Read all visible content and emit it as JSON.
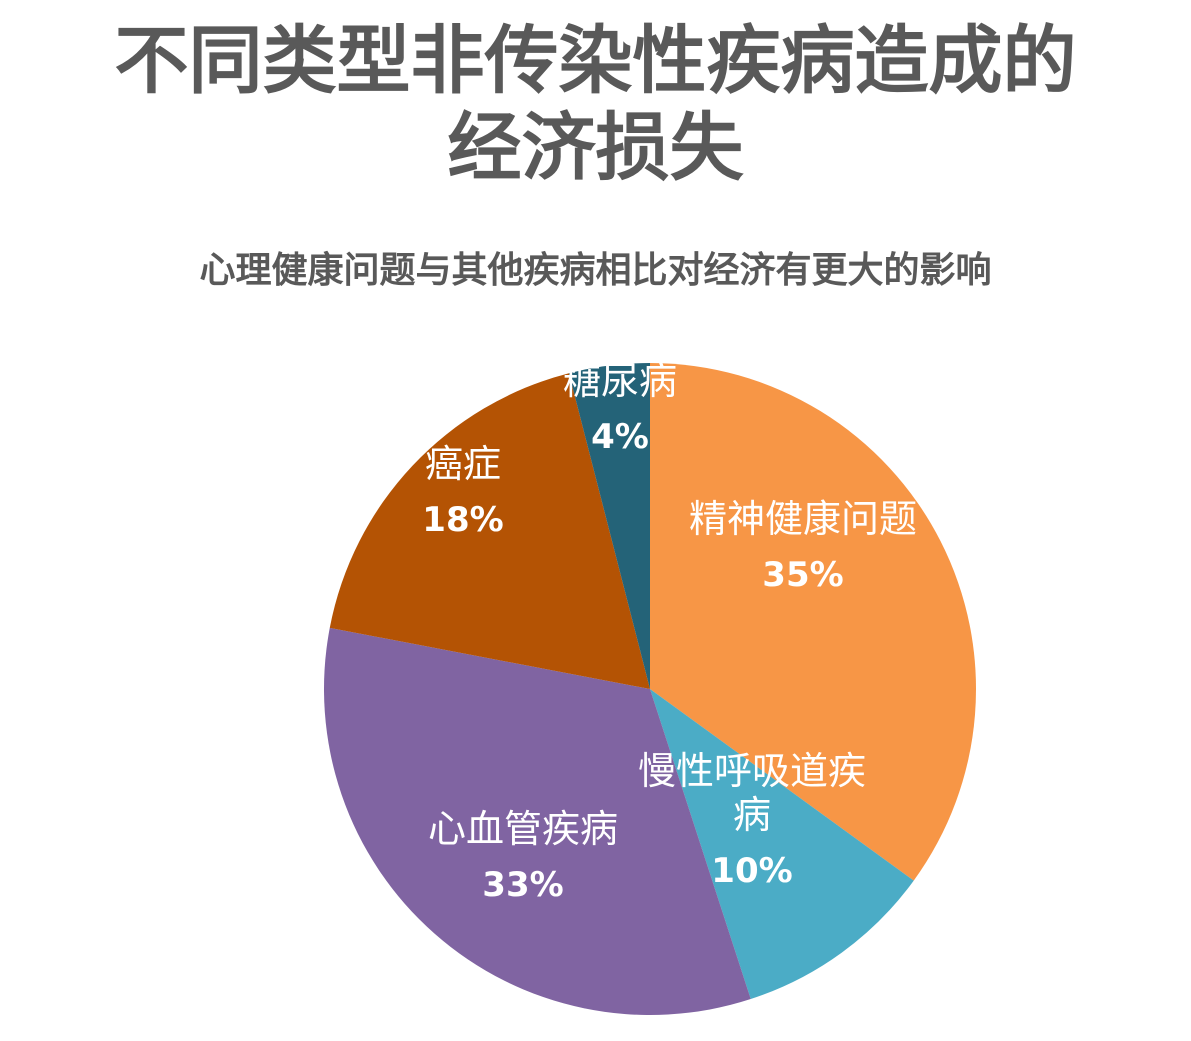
{
  "chart_data": {
    "type": "pie",
    "title_line1": "不同类型非传染性疾病造成的",
    "title_line2": "经济损失",
    "subtitle": "心理健康问题与其他疾病相比对经济有更大的影响",
    "slices": [
      {
        "label_lines": [
          "精神健康问题"
        ],
        "percent_label": "35%",
        "value": 35,
        "color": "#F79646"
      },
      {
        "label_lines": [
          "慢性呼吸道疾",
          "病"
        ],
        "percent_label": "10%",
        "value": 10,
        "color": "#4BACC6"
      },
      {
        "label_lines": [
          "心血管疾病"
        ],
        "percent_label": "33%",
        "value": 33,
        "color": "#8064A2"
      },
      {
        "label_lines": [
          "癌症"
        ],
        "percent_label": "18%",
        "value": 18,
        "color": "#B45304"
      },
      {
        "label_lines": [
          "糖尿病"
        ],
        "percent_label": "4%",
        "value": 4,
        "color": "#246378"
      }
    ],
    "start_angle": "12-o'clock",
    "direction": "clockwise",
    "legend": "none",
    "data_labels": "inside"
  }
}
